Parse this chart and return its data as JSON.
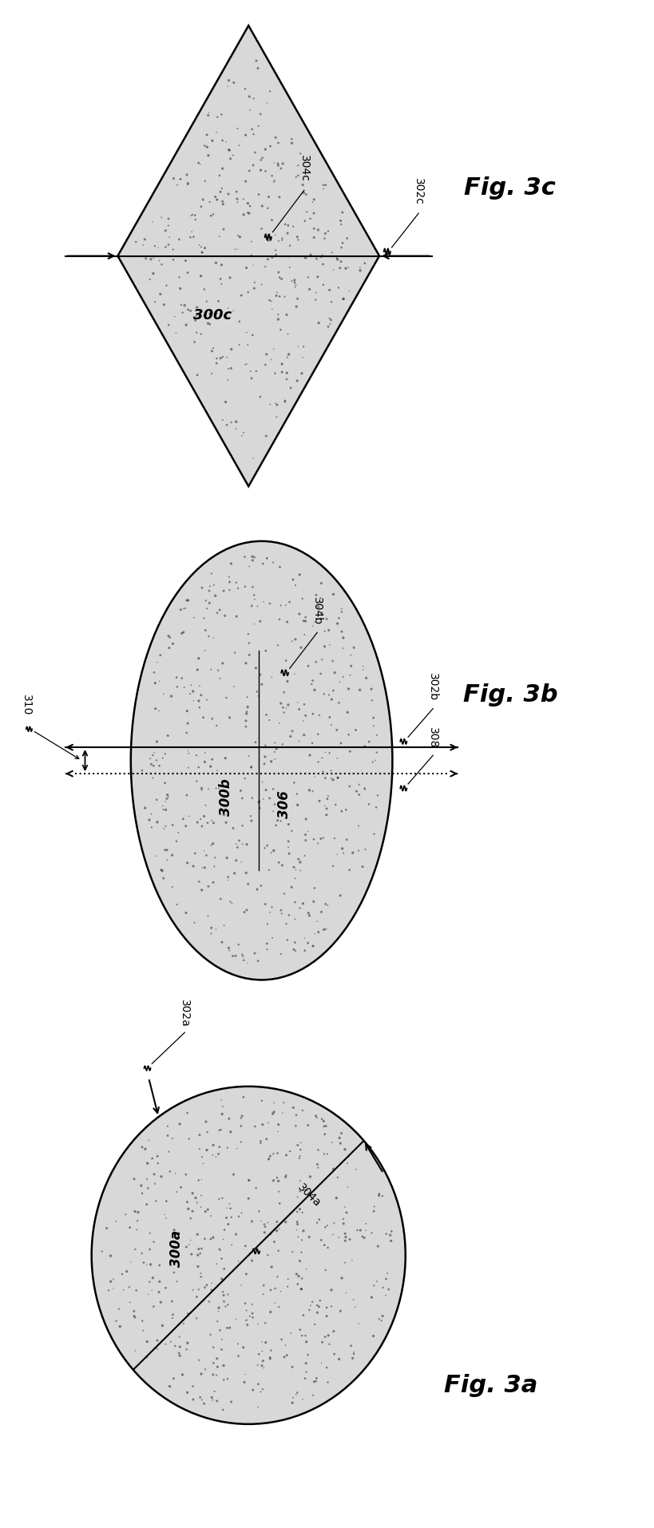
{
  "fig_title_a": "Fig. 3a",
  "fig_title_b": "Fig. 3b",
  "fig_title_c": "Fig. 3c",
  "label_300a": "300a",
  "label_302a": "302a",
  "label_304a": "304a",
  "label_300b": "300b",
  "label_302b": "302b",
  "label_304b": "304b",
  "label_306": "306",
  "label_308": "308",
  "label_310": "310",
  "label_300c": "300c",
  "label_302c": "302c",
  "label_304c": "304c",
  "bg_color": "#ffffff",
  "shape_fill": "#d8d8d8",
  "shape_edge": "#000000"
}
